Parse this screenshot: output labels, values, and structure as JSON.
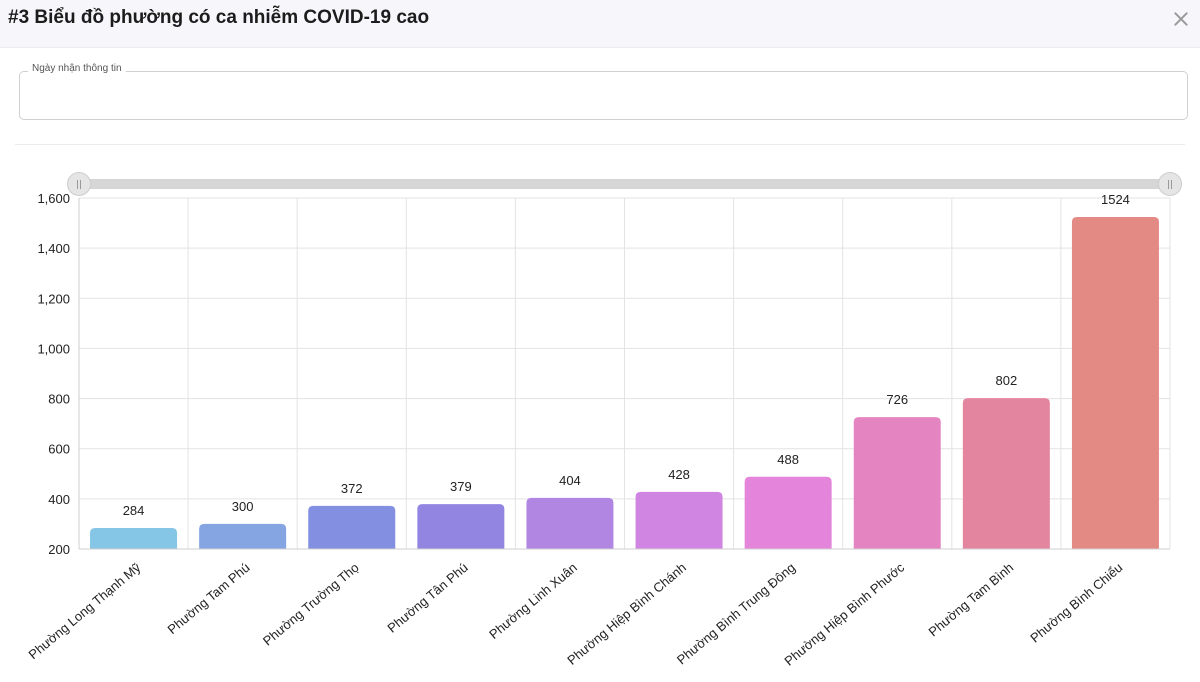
{
  "header": {
    "title": "#3 Biểu đồ phường có ca nhiễm COVID-19 cao",
    "close_icon": "close-icon"
  },
  "filter": {
    "date_label": "Ngày nhận thông tin",
    "date_value": ""
  },
  "chart_data": {
    "type": "bar",
    "categories": [
      "Phường Long Thạnh Mỹ",
      "Phường Tam Phú",
      "Phường Trường Thọ",
      "Phường Tân Phú",
      "Phường Linh Xuân",
      "Phường Hiệp Bình Chánh",
      "Phường Bình Trung Đông",
      "Phường Hiệp Bình Phước",
      "Phường Tam Bình",
      "Phường Bình Chiểu"
    ],
    "values": [
      284,
      300,
      372,
      379,
      404,
      428,
      488,
      726,
      802,
      1524
    ],
    "ylim": [
      200,
      1600
    ],
    "yticks": [
      200,
      400,
      600,
      800,
      1000,
      1200,
      1400,
      1600
    ],
    "ytick_labels": [
      "200",
      "400",
      "600",
      "800",
      "1,000",
      "1,200",
      "1,400",
      "1,600"
    ],
    "grid": true,
    "data_labels": true,
    "colors": [
      "#85c6e6",
      "#85a5e2",
      "#8390e2",
      "#9285e2",
      "#b185e2",
      "#d085e2",
      "#e485db",
      "#e485c2",
      "#e485a0",
      "#e48a85"
    ]
  },
  "range_slider": {
    "start": 0,
    "end": 1
  }
}
